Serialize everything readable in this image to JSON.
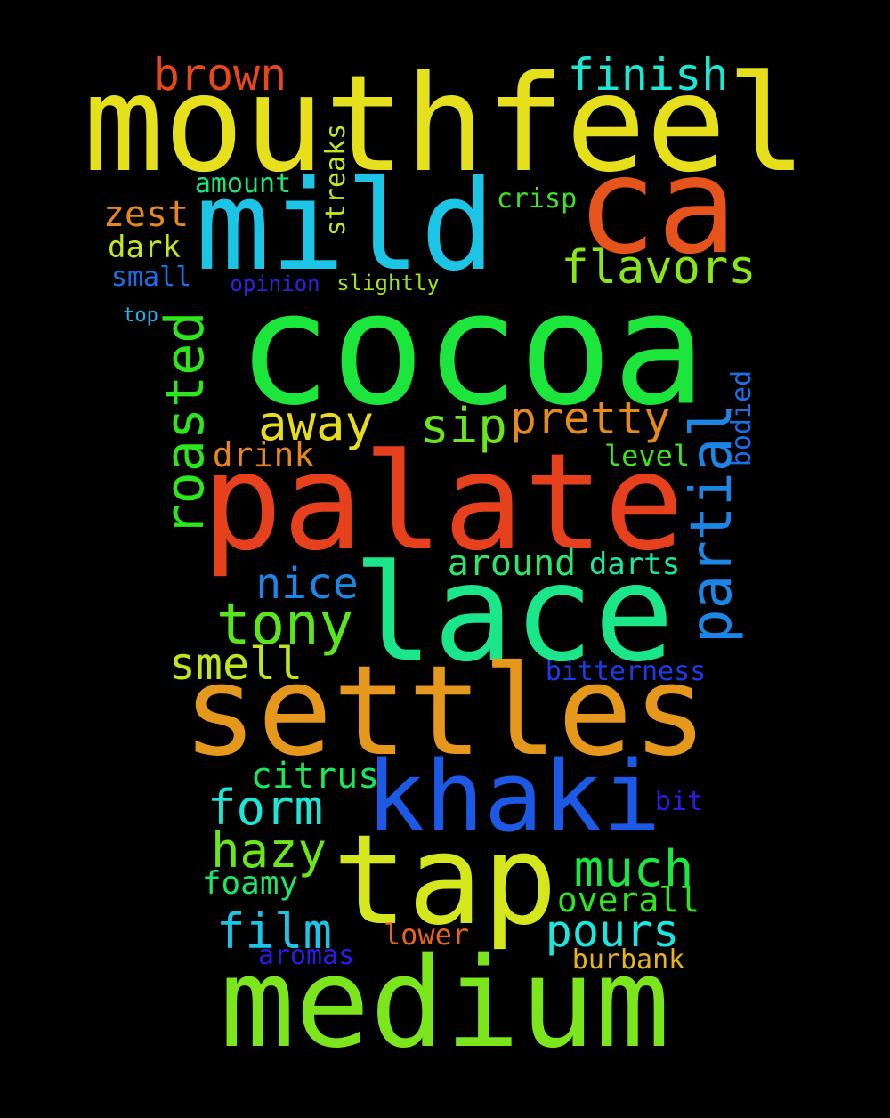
{
  "words": [
    {
      "id": "mouthfeel",
      "text": "mouthfeel",
      "color": "#e6e01c",
      "vertical": false
    },
    {
      "id": "ca",
      "text": "ca",
      "color": "#e6541c",
      "vertical": false
    },
    {
      "id": "mild",
      "text": "mild",
      "color": "#1cc4e6",
      "vertical": false
    },
    {
      "id": "cocoa",
      "text": "cocoa",
      "color": "#1ce63c",
      "vertical": false
    },
    {
      "id": "palate",
      "text": "palate",
      "color": "#e6401c",
      "vertical": false
    },
    {
      "id": "lace",
      "text": "lace",
      "color": "#1ce68a",
      "vertical": false
    },
    {
      "id": "settles",
      "text": "settles",
      "color": "#e6981c",
      "vertical": false
    },
    {
      "id": "khaki",
      "text": "khaki",
      "color": "#1c5ae6",
      "vertical": false
    },
    {
      "id": "tap",
      "text": "tap",
      "color": "#d4e61c",
      "vertical": false
    },
    {
      "id": "medium",
      "text": "medium",
      "color": "#7ce61c",
      "vertical": false
    },
    {
      "id": "brown",
      "text": "brown",
      "color": "#e6481c",
      "vertical": false
    },
    {
      "id": "finish",
      "text": "finish",
      "color": "#1ce6d4",
      "vertical": false
    },
    {
      "id": "amount",
      "text": "amount",
      "color": "#1ce67a",
      "vertical": false
    },
    {
      "id": "streaks",
      "text": "streaks",
      "color": "#c8e61c",
      "vertical": true
    },
    {
      "id": "crisp",
      "text": "crisp",
      "color": "#3ce61c",
      "vertical": false
    },
    {
      "id": "zest",
      "text": "zest",
      "color": "#e6881c",
      "vertical": false
    },
    {
      "id": "dark",
      "text": "dark",
      "color": "#c4e61c",
      "vertical": false
    },
    {
      "id": "flavors",
      "text": "flavors",
      "color": "#8ae61c",
      "vertical": false
    },
    {
      "id": "small",
      "text": "small",
      "color": "#1c6ee6",
      "vertical": false
    },
    {
      "id": "opinion",
      "text": "opinion",
      "color": "#3c1ce6",
      "vertical": false
    },
    {
      "id": "slightly",
      "text": "slightly",
      "color": "#9ee61c",
      "vertical": false
    },
    {
      "id": "top",
      "text": "top",
      "color": "#1cb4e6",
      "vertical": false
    },
    {
      "id": "roasted",
      "text": "roasted",
      "color": "#2ee61c",
      "vertical": true
    },
    {
      "id": "away",
      "text": "away",
      "color": "#e6dc1c",
      "vertical": false
    },
    {
      "id": "sip",
      "text": "sip",
      "color": "#6ae61c",
      "vertical": false
    },
    {
      "id": "pretty",
      "text": "pretty",
      "color": "#e68a1c",
      "vertical": false
    },
    {
      "id": "bodied",
      "text": "bodied",
      "color": "#1c6ee6",
      "vertical": true
    },
    {
      "id": "drink",
      "text": "drink",
      "color": "#e6861c",
      "vertical": false
    },
    {
      "id": "level",
      "text": "level",
      "color": "#3ce61c",
      "vertical": false
    },
    {
      "id": "partial",
      "text": "partial",
      "color": "#1c86e6",
      "vertical": true
    },
    {
      "id": "nice",
      "text": "nice",
      "color": "#1c86e6",
      "vertical": false
    },
    {
      "id": "around",
      "text": "around",
      "color": "#2ee66a",
      "vertical": false
    },
    {
      "id": "darts",
      "text": "darts",
      "color": "#1ce6a0",
      "vertical": false
    },
    {
      "id": "tony",
      "text": "tony",
      "color": "#5ae61c",
      "vertical": false
    },
    {
      "id": "smell",
      "text": "smell",
      "color": "#bee61c",
      "vertical": false
    },
    {
      "id": "bitterness",
      "text": "bitterness",
      "color": "#1c3ce6",
      "vertical": false
    },
    {
      "id": "citrus",
      "text": "citrus",
      "color": "#1ce65a",
      "vertical": false
    },
    {
      "id": "form",
      "text": "form",
      "color": "#1ce6d8",
      "vertical": false
    },
    {
      "id": "bit",
      "text": "bit",
      "color": "#2c1ce6",
      "vertical": false
    },
    {
      "id": "hazy",
      "text": "hazy",
      "color": "#6ae61c",
      "vertical": false
    },
    {
      "id": "much",
      "text": "much",
      "color": "#1ce642",
      "vertical": false
    },
    {
      "id": "foamy",
      "text": "foamy",
      "color": "#1ce66a",
      "vertical": false
    },
    {
      "id": "overall",
      "text": "overall",
      "color": "#2ee61c",
      "vertical": false
    },
    {
      "id": "film",
      "text": "film",
      "color": "#1cc4e6",
      "vertical": false
    },
    {
      "id": "pours",
      "text": "pours",
      "color": "#1ce6e0",
      "vertical": false
    },
    {
      "id": "lower",
      "text": "lower",
      "color": "#e6641c",
      "vertical": false
    },
    {
      "id": "aromas",
      "text": "aromas",
      "color": "#2c1ce6",
      "vertical": false
    },
    {
      "id": "burbank",
      "text": "burbank",
      "color": "#e6b41c",
      "vertical": false
    }
  ]
}
